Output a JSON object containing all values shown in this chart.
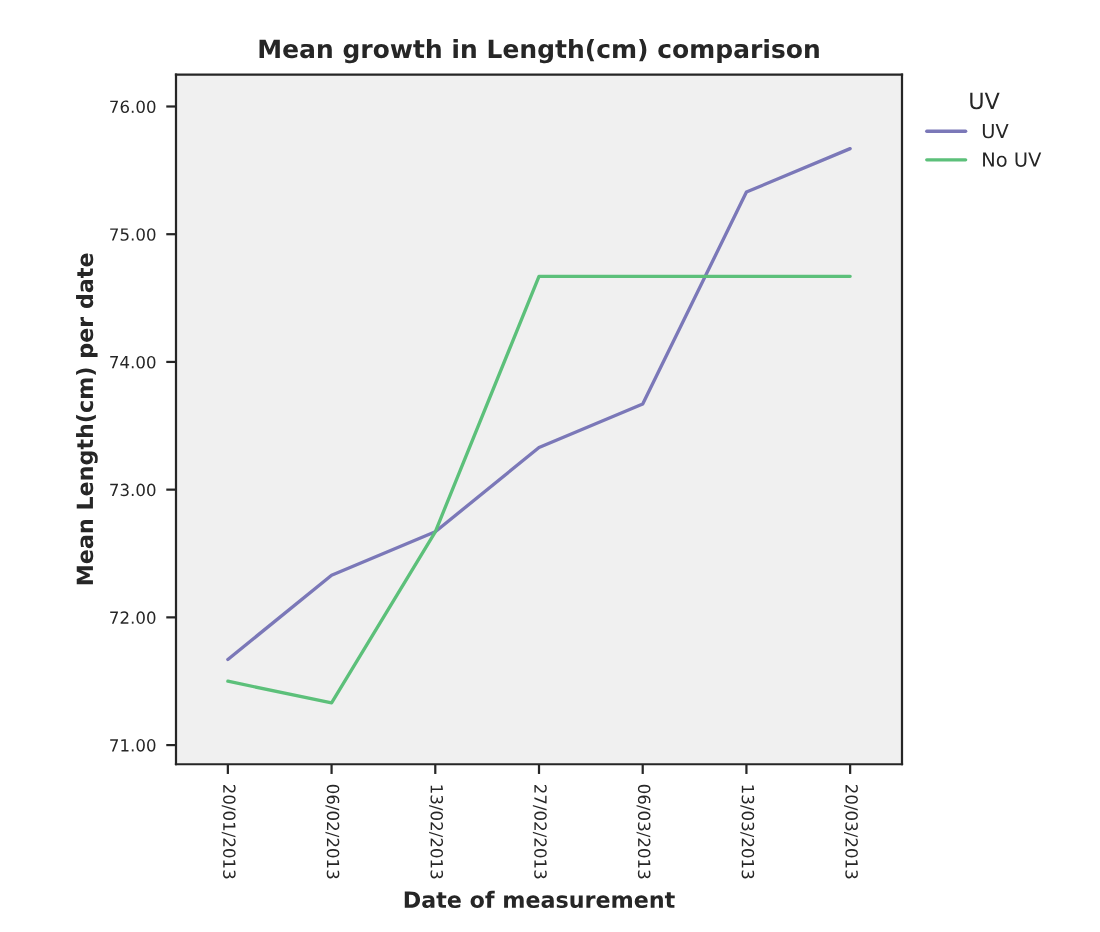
{
  "chart_data": {
    "type": "line",
    "title": "Mean growth in Length(cm) comparison",
    "xlabel": "Date of measurement",
    "ylabel": "Mean Length(cm) per date",
    "legend_title": "UV",
    "categories": [
      "20/01/2013",
      "06/02/2013",
      "13/02/2013",
      "27/02/2013",
      "06/03/2013",
      "13/03/2013",
      "20/03/2013"
    ],
    "series": [
      {
        "name": "UV",
        "color": "#7b78b8",
        "values": [
          71.67,
          72.33,
          72.67,
          73.33,
          73.67,
          75.33,
          75.67
        ]
      },
      {
        "name": "No UV",
        "color": "#5cc07a",
        "values": [
          71.5,
          71.33,
          72.67,
          74.67,
          74.67,
          74.67,
          74.67
        ]
      }
    ],
    "ylim": [
      70.85,
      76.25
    ],
    "yticks": [
      {
        "value": 71,
        "label": "71.00"
      },
      {
        "value": 72,
        "label": "72.00"
      },
      {
        "value": 73,
        "label": "73.00"
      },
      {
        "value": 74,
        "label": "74.00"
      },
      {
        "value": 75,
        "label": "75.00"
      },
      {
        "value": 76,
        "label": "76.00"
      }
    ],
    "legend": "right",
    "grid": false
  }
}
